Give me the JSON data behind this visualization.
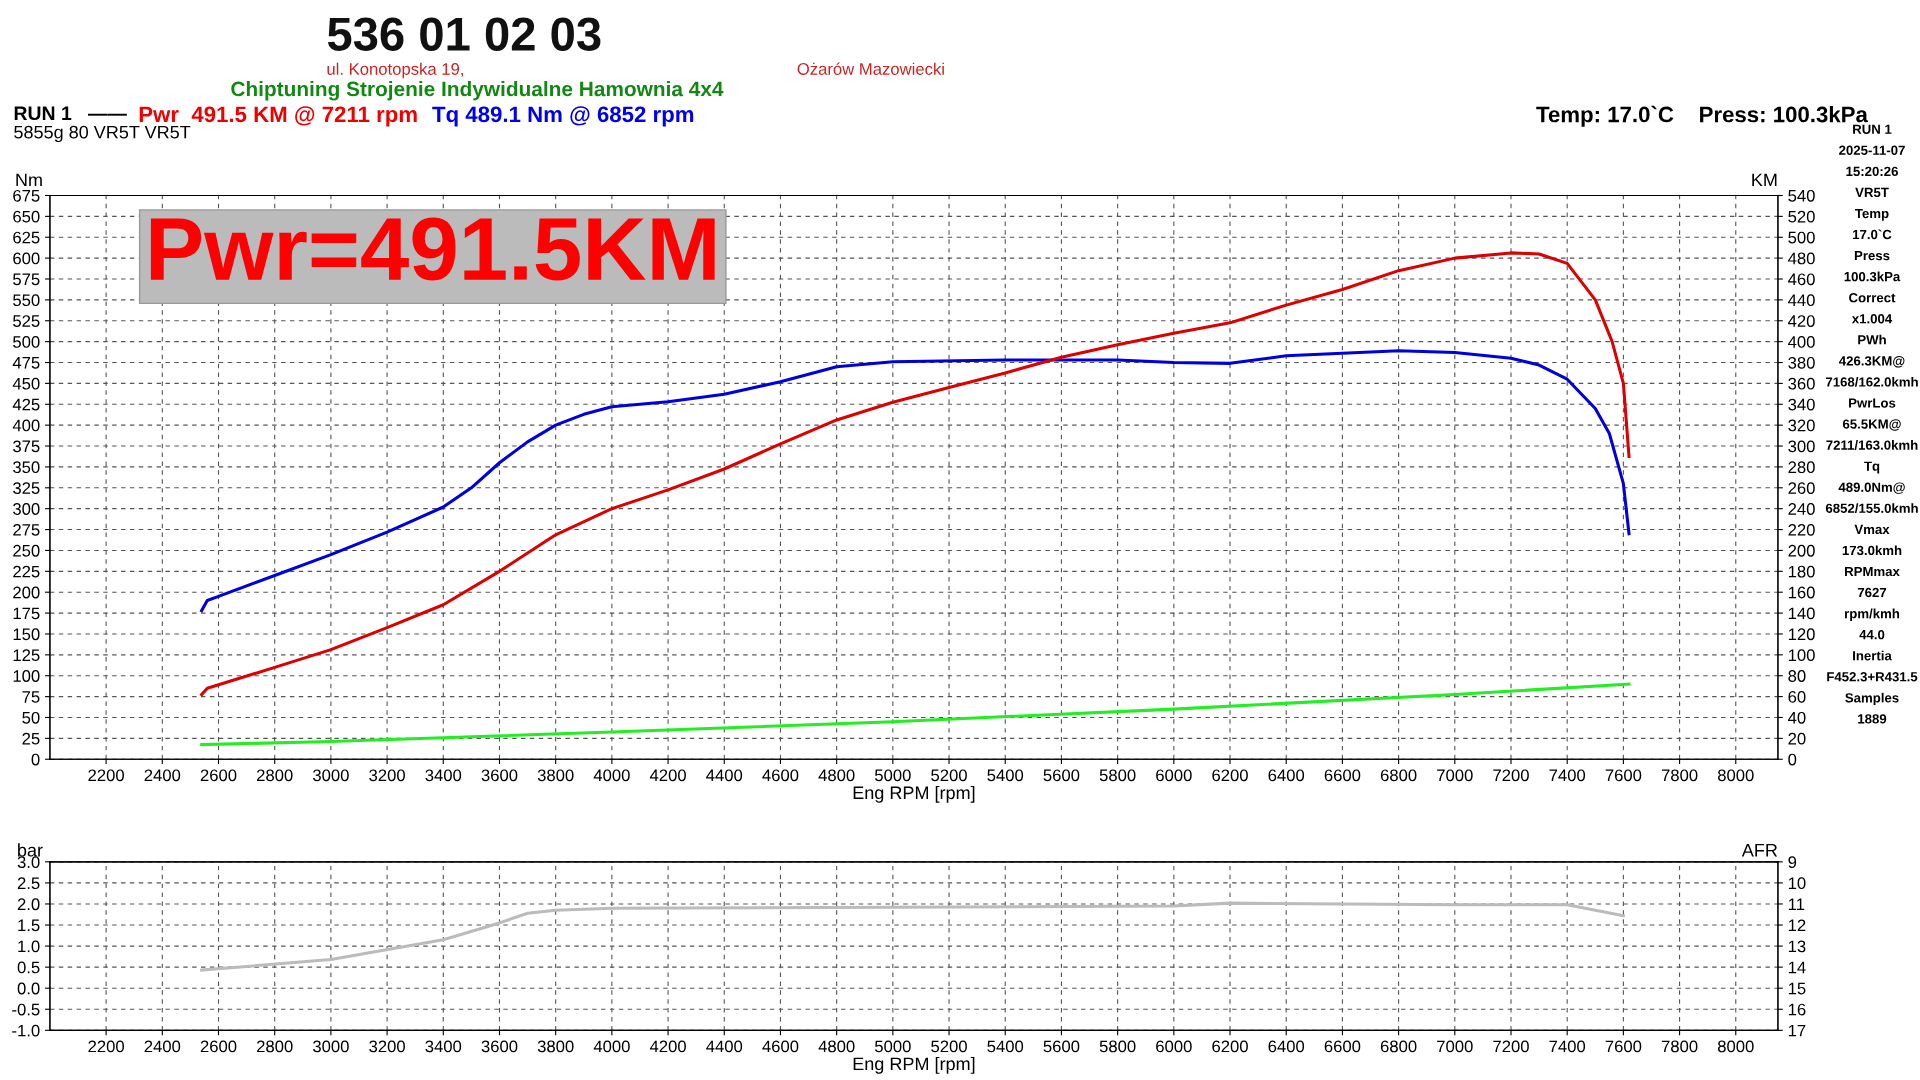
{
  "chart_data": [
    {
      "type": "line",
      "xlabel": "Eng RPM [rpm]",
      "ylabel": "Nm",
      "y2label": "KM",
      "xlim": [
        2000,
        8150
      ],
      "xticks": [
        2200,
        2400,
        2600,
        2800,
        3000,
        3200,
        3400,
        3600,
        3800,
        4000,
        4200,
        4400,
        4600,
        4800,
        5000,
        5200,
        5400,
        5600,
        5800,
        6000,
        6200,
        6400,
        6600,
        6800,
        7000,
        7200,
        7400,
        7600,
        7800,
        8000
      ],
      "ylim": [
        0,
        675
      ],
      "yticks": [
        0,
        25,
        50,
        75,
        100,
        125,
        150,
        175,
        200,
        225,
        250,
        275,
        300,
        325,
        350,
        375,
        400,
        425,
        450,
        475,
        500,
        525,
        550,
        575,
        600,
        625,
        650,
        675
      ],
      "y2lim": [
        0,
        540
      ],
      "y2ticks": [
        0,
        20,
        40,
        60,
        80,
        100,
        120,
        140,
        160,
        180,
        200,
        220,
        240,
        260,
        280,
        300,
        320,
        340,
        360,
        380,
        400,
        420,
        440,
        460,
        480,
        500,
        520,
        540
      ],
      "grid": true,
      "line_style": "solid",
      "series": [
        {
          "color": "#0000dd",
          "x": [
            2540,
            2560,
            2600,
            2800,
            3000,
            3200,
            3400,
            3500,
            3600,
            3700,
            3800,
            3900,
            4000,
            4200,
            4400,
            4600,
            4800,
            5000,
            5400,
            5800,
            6000,
            6200,
            6400,
            6800,
            7000,
            7200,
            7300,
            7400,
            7500,
            7550,
            7600,
            7620
          ],
          "values": [
            178,
            190,
            195,
            220,
            245,
            272,
            302,
            325,
            355,
            380,
            400,
            413,
            422,
            428,
            437,
            452,
            470,
            476,
            478,
            478,
            475,
            474,
            483,
            489,
            487,
            480,
            472,
            455,
            420,
            390,
            330,
            270
          ]
        },
        {
          "color": "#dd0000",
          "axis": "y2",
          "x": [
            2540,
            2560,
            2800,
            3000,
            3200,
            3400,
            3600,
            3800,
            4000,
            4200,
            4400,
            4600,
            4800,
            5000,
            5200,
            5400,
            5600,
            5800,
            6000,
            6200,
            6400,
            6600,
            6800,
            7000,
            7200,
            7300,
            7400,
            7500,
            7560,
            7600,
            7620
          ],
          "values": [
            62,
            68,
            88,
            105,
            126,
            148,
            180,
            215,
            240,
            258,
            278,
            302,
            325,
            342,
            356,
            370,
            385,
            397,
            408,
            418,
            435,
            450,
            468,
            480,
            485,
            484,
            475,
            440,
            400,
            360,
            290
          ]
        },
        {
          "color": "#22ee22",
          "axis": "y2",
          "x": [
            2540,
            3000,
            4000,
            5000,
            6000,
            7000,
            7620
          ],
          "values": [
            14,
            17,
            26,
            36,
            48,
            62,
            72
          ]
        }
      ],
      "annotations": [
        "536 01 02 03",
        "ul. Konotopska 19,",
        "Ożarów Mazowiecki",
        "Chiptuning Strojenie Indywidualne Hamownia 4x4",
        "RUN 1   ——",
        "Pwr  491.5 KM @ 7211 rpm",
        "Tq 489.1 Nm @ 6852 rpm",
        "Temp: 17.0`C    Press: 100.3kPa",
        "5855g 80 VR5T VR5T",
        "Pwr=491.5KM",
        "RUN 1",
        "2025-11-07",
        "15:20:26",
        "VR5T",
        "Temp",
        "17.0`C",
        "Press",
        "100.3kPa",
        "Correct",
        "x1.004",
        "PWh",
        "426.3KM@",
        "7168/162.0kmh",
        "PwrLos",
        "65.5KM@",
        "7211/163.0kmh",
        "Tq",
        "489.0Nm@",
        "6852/155.0kmh",
        "Vmax",
        "173.0kmh",
        "RPMmax",
        "7627",
        "rpm/kmh",
        "44.0",
        "Inertia",
        "F452.3+R431.5",
        "Samples",
        "1889"
      ]
    },
    {
      "type": "line",
      "xlabel": "Eng RPM [rpm]",
      "ylabel": "bar",
      "y2label": "AFR",
      "xlim": [
        2000,
        8150
      ],
      "xticks": [
        2200,
        2400,
        2600,
        2800,
        3000,
        3200,
        3400,
        3600,
        3800,
        4000,
        4200,
        4400,
        4600,
        4800,
        5000,
        5200,
        5400,
        5600,
        5800,
        6000,
        6200,
        6400,
        6600,
        6800,
        7000,
        7200,
        7400,
        7600,
        7800,
        8000
      ],
      "ylim": [
        -1,
        3
      ],
      "yticks": [
        {
          "value": -1,
          "label": "-1.0"
        },
        {
          "value": -0.5,
          "label": "-0.5"
        },
        {
          "value": 0,
          "label": "0.0"
        },
        {
          "value": 0.5,
          "label": "0.5"
        },
        {
          "value": 1,
          "label": "1.0"
        },
        {
          "value": 1.5,
          "label": "1.5"
        },
        {
          "value": 2,
          "label": "2.0"
        },
        {
          "value": 2.5,
          "label": "2.5"
        },
        {
          "value": 3,
          "label": "3.0"
        }
      ],
      "y2lim": [
        17,
        9
      ],
      "y2ticks": [
        9,
        10,
        11,
        12,
        13,
        14,
        15,
        16,
        17
      ],
      "grid": true,
      "line_style": "solid",
      "series": [
        {
          "color": "#bbbbbb",
          "x": [
            2540,
            3000,
            3400,
            3600,
            3700,
            3800,
            4000,
            5000,
            6000,
            6200,
            7000,
            7400,
            7600
          ],
          "values": [
            0.43,
            0.68,
            1.15,
            1.55,
            1.78,
            1.85,
            1.9,
            1.92,
            1.95,
            2.02,
            1.98,
            1.98,
            1.72
          ]
        }
      ]
    }
  ]
}
